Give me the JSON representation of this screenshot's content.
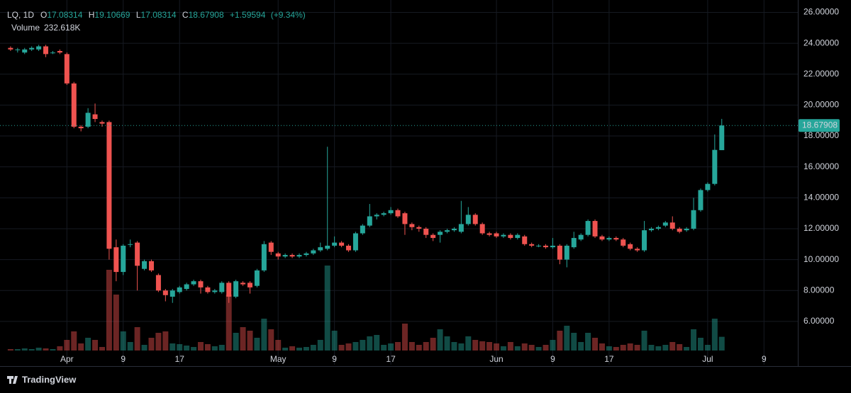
{
  "chart_data": {
    "type": "candlestick",
    "title": "LQ, 1D",
    "legend": {
      "open_label": "O",
      "open": 17.08314,
      "high_label": "H",
      "high": 19.10669,
      "low_label": "L",
      "low": 17.08314,
      "close_label": "C",
      "close": 18.67908,
      "change": {
        "value": 1.59594,
        "label": "+1.59594"
      },
      "change_pct": {
        "value": 9.34,
        "label": "(+9.34%)"
      },
      "volume_label": "Volume",
      "volume": {
        "value": 232618,
        "label": "232.618K"
      }
    },
    "brand": "TradingView",
    "up_color": "#26a69a",
    "down_color": "#ef5350",
    "grid": true,
    "xlim": [
      -1.5,
      111.8
    ],
    "xticks": [
      {
        "value": 8,
        "label": "Apr"
      },
      {
        "value": 16,
        "label": "9"
      },
      {
        "value": 24,
        "label": "17"
      },
      {
        "value": 38,
        "label": "May"
      },
      {
        "value": 46,
        "label": "9"
      },
      {
        "value": 54,
        "label": "17"
      },
      {
        "value": 69,
        "label": "Jun"
      },
      {
        "value": 77,
        "label": "9"
      },
      {
        "value": 85,
        "label": "17"
      },
      {
        "value": 99,
        "label": "Jul"
      },
      {
        "value": 107,
        "label": "9"
      }
    ],
    "ylim": [
      3.2,
      26.8
    ],
    "yticks": [
      {
        "value": 6,
        "label": "6.00000"
      },
      {
        "value": 8,
        "label": "8.00000"
      },
      {
        "value": 10,
        "label": "10.00000"
      },
      {
        "value": 12,
        "label": "12.00000"
      },
      {
        "value": 14,
        "label": "14.00000"
      },
      {
        "value": 16,
        "label": "16.00000"
      },
      {
        "value": 18,
        "label": "18.00000"
      },
      {
        "value": 20,
        "label": "20.00000"
      },
      {
        "value": 22,
        "label": "22.00000"
      },
      {
        "value": 24,
        "label": "24.00000"
      },
      {
        "value": 26,
        "label": "26.00000"
      }
    ],
    "open": [
      23.7,
      23.6,
      23.4,
      23.6,
      23.6,
      23.8,
      23.4,
      23.5,
      23.3,
      21.4,
      18.6,
      18.6,
      19.4,
      18.9,
      18.9,
      10.8,
      9.2,
      11.0,
      11.1,
      9.4,
      9.9,
      9.0,
      8.0,
      7.6,
      7.9,
      8.1,
      8.4,
      8.6,
      8.2,
      7.9,
      7.9,
      8.5,
      7.6,
      8.5,
      8.5,
      8.3,
      9.3,
      11.1,
      10.4,
      10.2,
      10.3,
      10.2,
      10.3,
      10.4,
      10.6,
      10.7,
      10.9,
      11.1,
      10.9,
      10.6,
      11.7,
      12.2,
      12.8,
      12.9,
      13.0,
      13.2,
      13.0,
      12.3,
      12.1,
      12.0,
      11.6,
      11.6,
      11.8,
      11.9,
      11.8,
      12.3,
      12.9,
      12.3,
      11.7,
      11.7,
      11.5,
      11.6,
      11.4,
      11.5,
      11.0,
      10.9,
      10.9,
      10.8,
      10.9,
      10.0,
      10.8,
      11.3,
      11.6,
      12.5,
      11.5,
      11.3,
      11.4,
      11.3,
      11.0,
      10.7,
      10.6,
      11.9,
      12.0,
      12.2,
      12.4,
      12.0,
      11.9,
      12.0,
      13.2,
      14.5,
      14.9,
      17.08314
    ],
    "high": [
      23.8,
      23.7,
      23.7,
      23.8,
      23.9,
      23.9,
      23.5,
      23.6,
      23.4,
      21.5,
      18.7,
      19.8,
      20.1,
      19.0,
      19.0,
      11.3,
      11.0,
      11.3,
      11.2,
      10.0,
      10.0,
      9.1,
      8.1,
      8.1,
      8.3,
      8.5,
      8.7,
      8.7,
      8.3,
      8.1,
      8.6,
      8.6,
      8.7,
      8.6,
      8.6,
      9.4,
      11.2,
      11.2,
      10.5,
      10.4,
      10.4,
      10.4,
      10.5,
      10.7,
      11.1,
      17.3,
      11.5,
      11.2,
      11.0,
      11.8,
      12.3,
      13.6,
      13.0,
      13.1,
      13.4,
      13.3,
      13.1,
      12.4,
      12.2,
      12.1,
      11.7,
      11.9,
      12.0,
      12.1,
      13.8,
      13.4,
      13.0,
      12.4,
      11.8,
      11.8,
      11.7,
      11.7,
      11.7,
      11.6,
      11.1,
      11.0,
      11.0,
      11.4,
      11.0,
      11.0,
      11.8,
      11.7,
      12.6,
      12.6,
      11.6,
      11.5,
      11.5,
      11.4,
      11.1,
      10.8,
      12.5,
      12.1,
      12.2,
      12.5,
      12.8,
      12.1,
      12.1,
      14.0,
      14.6,
      15.0,
      18.1,
      19.10669
    ],
    "low": [
      23.5,
      23.4,
      23.3,
      23.5,
      23.5,
      23.1,
      23.3,
      23.3,
      21.3,
      18.5,
      18.3,
      18.5,
      18.9,
      18.6,
      10.0,
      8.6,
      9.0,
      10.8,
      8.0,
      9.3,
      9.2,
      7.9,
      7.3,
      7.2,
      7.8,
      8.0,
      8.3,
      7.8,
      7.8,
      7.8,
      7.8,
      7.2,
      7.5,
      8.3,
      7.8,
      8.2,
      9.2,
      10.3,
      10.0,
      10.1,
      10.1,
      10.1,
      10.2,
      10.3,
      10.5,
      10.6,
      10.8,
      10.8,
      10.5,
      10.5,
      11.6,
      12.1,
      12.6,
      12.8,
      12.9,
      12.7,
      11.6,
      11.9,
      11.8,
      11.4,
      11.2,
      11.1,
      11.7,
      11.8,
      11.7,
      12.2,
      12.2,
      11.6,
      11.5,
      11.4,
      11.4,
      11.3,
      11.3,
      10.9,
      10.8,
      10.8,
      10.7,
      10.7,
      9.7,
      9.5,
      10.7,
      11.2,
      11.5,
      11.4,
      11.2,
      11.2,
      11.2,
      10.8,
      10.6,
      10.5,
      10.5,
      11.8,
      11.9,
      12.1,
      11.9,
      11.7,
      11.8,
      11.9,
      13.1,
      14.4,
      14.8,
      17.08314
    ],
    "close": [
      23.6,
      23.6,
      23.6,
      23.7,
      23.8,
      23.3,
      23.4,
      23.4,
      21.4,
      18.6,
      18.5,
      19.5,
      19.1,
      18.8,
      10.7,
      9.2,
      10.9,
      11.0,
      9.6,
      9.9,
      9.3,
      8.0,
      7.7,
      8.0,
      8.2,
      8.4,
      8.6,
      8.2,
      7.9,
      8.0,
      8.5,
      7.6,
      8.6,
      8.4,
      8.2,
      9.3,
      11.0,
      10.5,
      10.2,
      10.3,
      10.2,
      10.3,
      10.4,
      10.6,
      10.8,
      10.9,
      11.1,
      10.9,
      10.6,
      11.7,
      12.2,
      12.8,
      12.9,
      13.0,
      13.2,
      12.8,
      12.3,
      12.1,
      12.0,
      11.6,
      11.4,
      11.8,
      11.9,
      12.0,
      12.3,
      12.9,
      12.3,
      11.7,
      11.6,
      11.5,
      11.6,
      11.4,
      11.6,
      11.0,
      10.9,
      10.9,
      10.8,
      10.9,
      10.0,
      10.9,
      11.4,
      11.6,
      12.5,
      11.5,
      11.3,
      11.4,
      11.3,
      10.9,
      10.7,
      10.6,
      11.9,
      12.0,
      12.1,
      12.4,
      12.0,
      11.8,
      12.0,
      13.2,
      14.5,
      14.9,
      17.1,
      18.67908
    ],
    "volume": [
      24000,
      24000,
      36000,
      24000,
      48000,
      36000,
      24000,
      72000,
      180000,
      324000,
      120000,
      216000,
      180000,
      60000,
      1368000,
      948000,
      324000,
      144000,
      396000,
      96000,
      216000,
      300000,
      324000,
      120000,
      108000,
      84000,
      60000,
      144000,
      108000,
      72000,
      96000,
      948000,
      300000,
      396000,
      336000,
      216000,
      540000,
      360000,
      180000,
      48000,
      72000,
      48000,
      60000,
      96000,
      180000,
      1440000,
      336000,
      96000,
      120000,
      144000,
      180000,
      240000,
      264000,
      96000,
      120000,
      144000,
      456000,
      144000,
      96000,
      144000,
      216000,
      360000,
      240000,
      144000,
      120000,
      240000,
      180000,
      156000,
      144000,
      120000,
      72000,
      144000,
      72000,
      120000,
      96000,
      60000,
      96000,
      180000,
      336000,
      420000,
      300000,
      144000,
      300000,
      216000,
      120000,
      72000,
      60000,
      96000,
      120000,
      96000,
      336000,
      96000,
      72000,
      96000,
      144000,
      108000,
      60000,
      360000,
      216000,
      96000,
      540000,
      232618
    ]
  }
}
